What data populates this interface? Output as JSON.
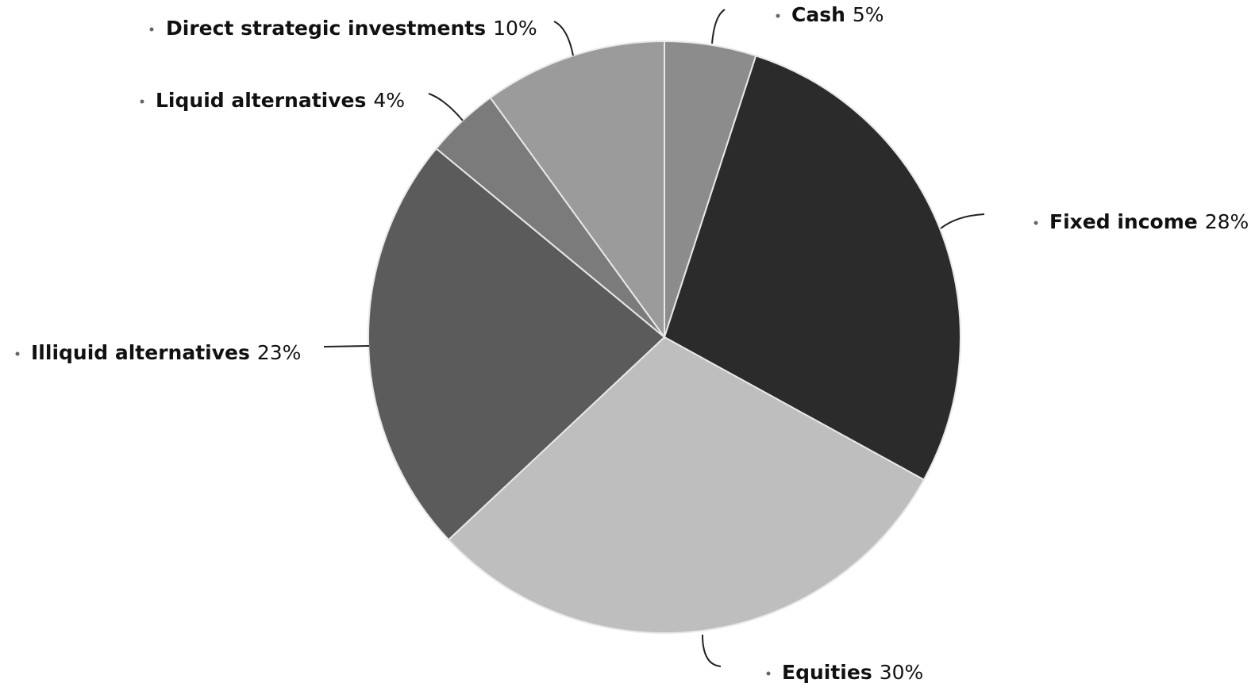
{
  "chart_data": {
    "type": "pie",
    "categories": [
      "Cash",
      "Fixed income",
      "Equities",
      "Illiquid alternatives",
      "Liquid alternatives",
      "Direct strategic investments"
    ],
    "values": [
      5,
      28,
      30,
      23,
      4,
      10
    ],
    "value_labels": [
      "5%",
      "28%",
      "30%",
      "23%",
      "4%",
      "10%"
    ],
    "colors": [
      "#8c8c8c",
      "#2b2b2b",
      "#bebebe",
      "#5b5b5b",
      "#7b7b7b",
      "#9b9b9b"
    ]
  }
}
